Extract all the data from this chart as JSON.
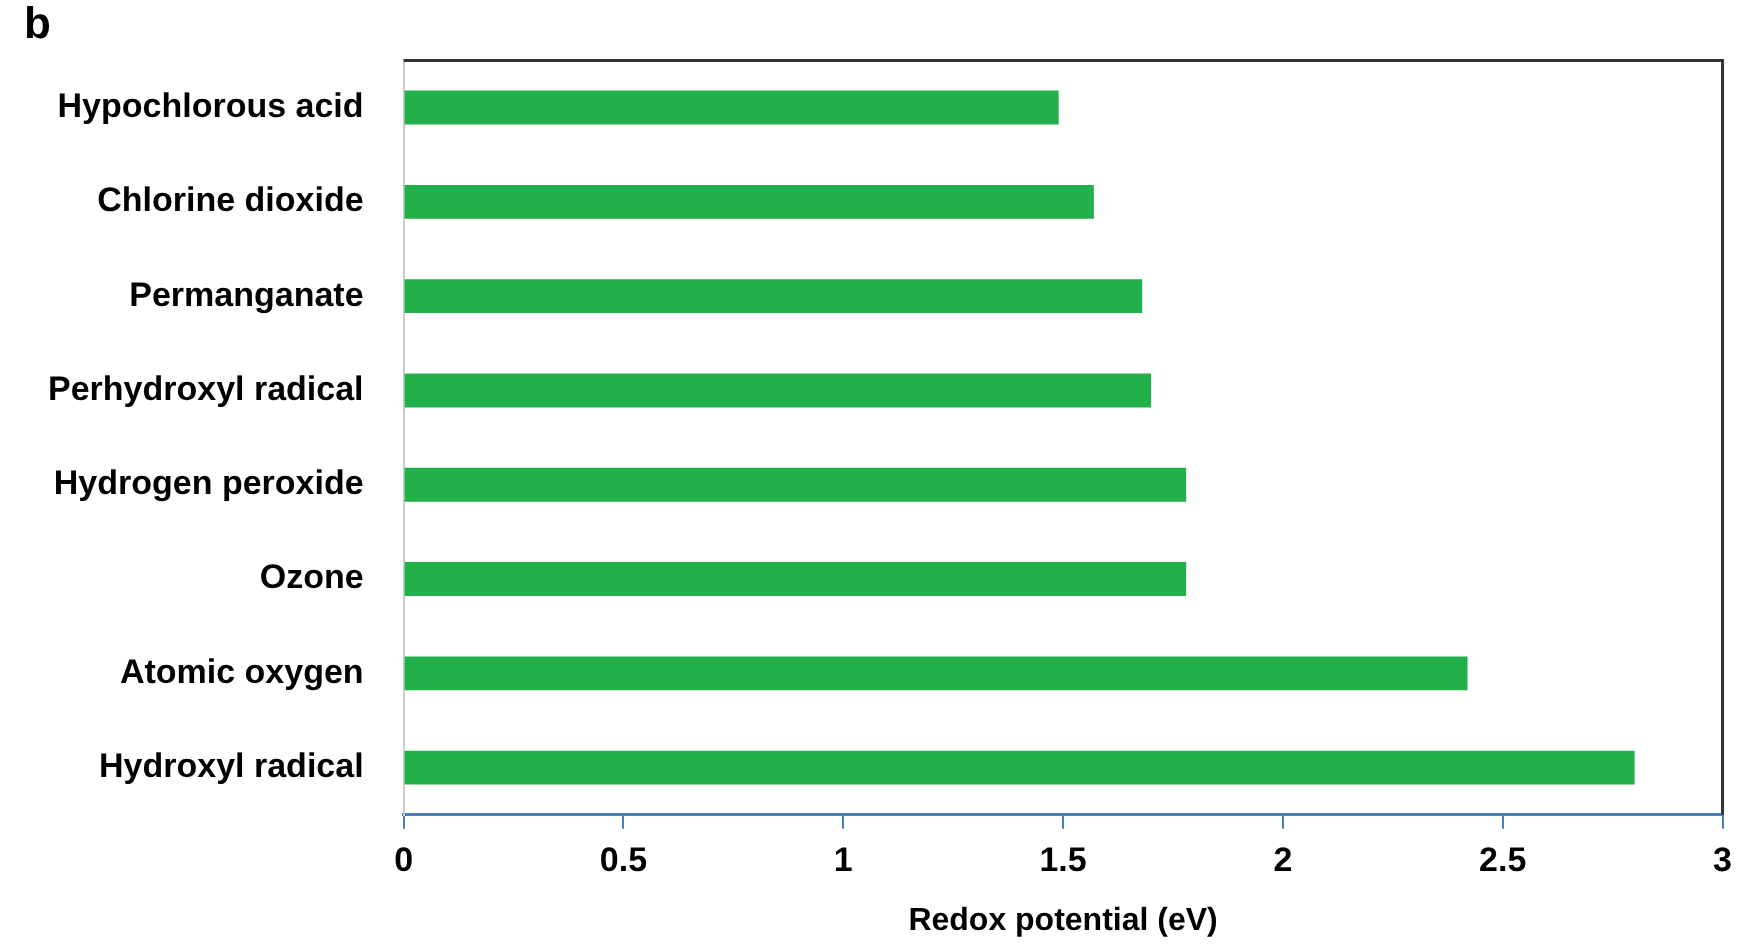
{
  "chart_data": {
    "type": "bar",
    "orientation": "horizontal",
    "xlabel": "Redox potential (eV)",
    "annotations": [
      "b"
    ],
    "categories": [
      "Hypochlorous acid",
      "Chlorine dioxide",
      "Permanganate",
      "Perhydroxyl radical",
      "Hydrogen peroxide",
      "Ozone",
      "Atomic oxygen",
      "Hydroxyl radical"
    ],
    "values": [
      1.49,
      1.57,
      1.68,
      1.7,
      1.78,
      1.78,
      2.42,
      2.8
    ],
    "color": "#22b04b",
    "xlim": [
      0,
      3
    ],
    "xticks": [
      0,
      0.5,
      1,
      1.5,
      2,
      2.5,
      3
    ],
    "grid": false,
    "legend": false
  }
}
